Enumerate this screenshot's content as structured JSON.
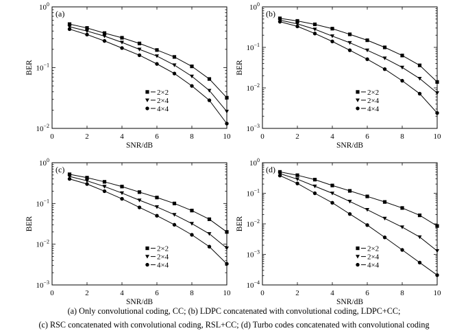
{
  "caption": {
    "line1": "(a)  Only convolutional coding, CC; (b) LDPC concatenated with convolutional coding, LDPC+CC;",
    "line2": "(c) RSC concatenated with convolutional coding, RSL+CC; (d) Turbo codes concatenated with convolutional coding"
  },
  "chart_data": [
    {
      "type": "line",
      "panel_label": "(a)",
      "xlabel": "SNR/dB",
      "ylabel": "BER",
      "xlim": [
        0,
        10
      ],
      "x_ticks": [
        "0",
        "2",
        "4",
        "6",
        "8",
        "10"
      ],
      "y_scale": "log",
      "ylim_exp": [
        -2,
        0
      ],
      "legend_position": "center-right",
      "x": [
        1,
        2,
        3,
        4,
        5,
        6,
        7,
        8,
        9,
        10
      ],
      "series": [
        {
          "name": "2×2",
          "marker": "square",
          "values": [
            0.52,
            0.45,
            0.37,
            0.31,
            0.25,
            0.195,
            0.15,
            0.105,
            0.065,
            0.032
          ]
        },
        {
          "name": "2×4",
          "marker": "triangle",
          "values": [
            0.47,
            0.4,
            0.33,
            0.26,
            0.2,
            0.155,
            0.11,
            0.072,
            0.042,
            0.019
          ]
        },
        {
          "name": "4×4",
          "marker": "circle",
          "values": [
            0.43,
            0.35,
            0.275,
            0.21,
            0.16,
            0.115,
            0.08,
            0.05,
            0.029,
            0.012
          ]
        }
      ]
    },
    {
      "type": "line",
      "panel_label": "(b)",
      "xlabel": "SNR/dB",
      "ylabel": "BER",
      "xlim": [
        0,
        10
      ],
      "x_ticks": [
        "0",
        "2",
        "4",
        "6",
        "8",
        "10"
      ],
      "y_scale": "log",
      "ylim_exp": [
        -3,
        0
      ],
      "legend_position": "center-right",
      "x": [
        1,
        2,
        3,
        4,
        5,
        6,
        7,
        8,
        9,
        10
      ],
      "series": [
        {
          "name": "2×2",
          "marker": "square",
          "values": [
            0.52,
            0.45,
            0.37,
            0.29,
            0.21,
            0.15,
            0.1,
            0.063,
            0.036,
            0.014
          ]
        },
        {
          "name": "2×4",
          "marker": "triangle",
          "values": [
            0.47,
            0.38,
            0.28,
            0.19,
            0.13,
            0.085,
            0.054,
            0.032,
            0.017,
            0.0075
          ]
        },
        {
          "name": "4×4",
          "marker": "circle",
          "values": [
            0.43,
            0.33,
            0.22,
            0.14,
            0.085,
            0.051,
            0.029,
            0.015,
            0.0072,
            0.0024
          ]
        }
      ]
    },
    {
      "type": "line",
      "panel_label": "(c)",
      "xlabel": "SNR/dB",
      "ylabel": "BER",
      "xlim": [
        0,
        10
      ],
      "x_ticks": [
        "0",
        "2",
        "4",
        "6",
        "8",
        "10"
      ],
      "y_scale": "log",
      "ylim_exp": [
        -3,
        0
      ],
      "legend_position": "center-right",
      "x": [
        1,
        2,
        3,
        4,
        5,
        6,
        7,
        8,
        9,
        10
      ],
      "series": [
        {
          "name": "2×2",
          "marker": "square",
          "values": [
            0.52,
            0.43,
            0.34,
            0.26,
            0.19,
            0.14,
            0.1,
            0.067,
            0.041,
            0.02
          ]
        },
        {
          "name": "2×4",
          "marker": "triangle",
          "values": [
            0.46,
            0.36,
            0.26,
            0.18,
            0.12,
            0.082,
            0.053,
            0.032,
            0.018,
            0.008
          ]
        },
        {
          "name": "4×4",
          "marker": "circle",
          "values": [
            0.4,
            0.3,
            0.2,
            0.13,
            0.08,
            0.05,
            0.03,
            0.017,
            0.0087,
            0.0033
          ]
        }
      ]
    },
    {
      "type": "line",
      "panel_label": "(d)",
      "xlabel": "SNR/dB",
      "ylabel": "BER",
      "xlim": [
        0,
        10
      ],
      "x_ticks": [
        "0",
        "2",
        "4",
        "6",
        "8",
        "10"
      ],
      "y_scale": "log",
      "ylim_exp": [
        -4,
        0
      ],
      "legend_position": "center-right",
      "x": [
        1,
        2,
        3,
        4,
        5,
        6,
        7,
        8,
        9,
        10
      ],
      "series": [
        {
          "name": "2×2",
          "marker": "square",
          "values": [
            0.5,
            0.39,
            0.28,
            0.18,
            0.12,
            0.079,
            0.052,
            0.033,
            0.019,
            0.0085
          ]
        },
        {
          "name": "2×4",
          "marker": "triangle",
          "values": [
            0.44,
            0.29,
            0.17,
            0.1,
            0.054,
            0.029,
            0.015,
            0.0078,
            0.0037,
            0.0013
          ]
        },
        {
          "name": "4×4",
          "marker": "circle",
          "values": [
            0.38,
            0.21,
            0.1,
            0.049,
            0.021,
            0.0091,
            0.0036,
            0.0014,
            0.00054,
            0.00021
          ]
        }
      ]
    }
  ]
}
